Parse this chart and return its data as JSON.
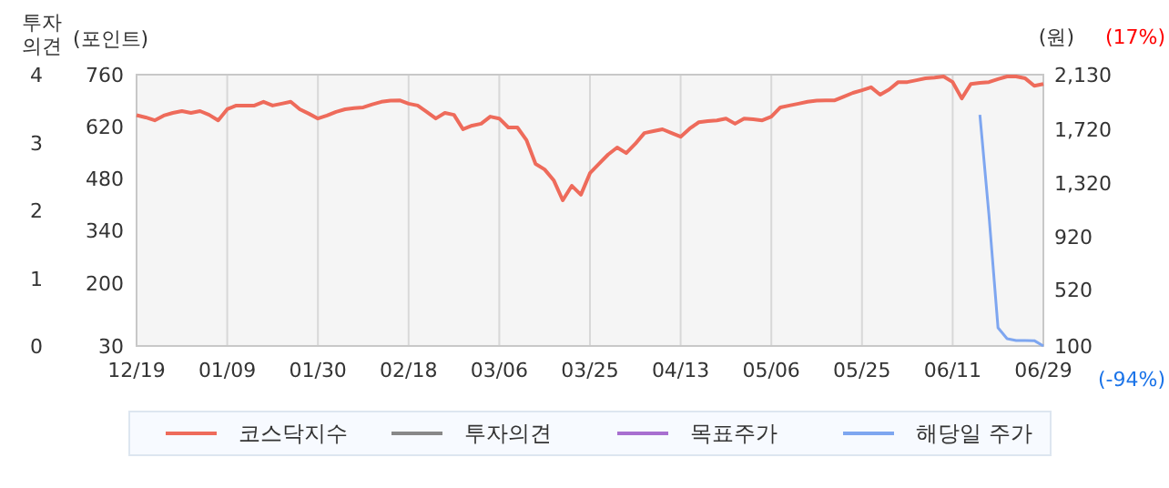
{
  "chart_data": {
    "type": "line",
    "ylabel": "(포인트)",
    "y2label": "(원)",
    "y3label": "투자의견",
    "annotations": [
      "(17%)",
      "(-94%)"
    ],
    "categories": [
      "12/19",
      null,
      null,
      null,
      null,
      null,
      null,
      null,
      null,
      null,
      "01/09",
      null,
      null,
      null,
      null,
      null,
      null,
      null,
      null,
      null,
      "01/30",
      null,
      null,
      null,
      null,
      null,
      null,
      null,
      null,
      null,
      "02/18",
      null,
      null,
      null,
      null,
      null,
      null,
      null,
      null,
      null,
      "03/06",
      null,
      null,
      null,
      null,
      null,
      null,
      null,
      null,
      null,
      "03/25",
      null,
      null,
      null,
      null,
      null,
      null,
      null,
      null,
      null,
      "04/13",
      null,
      null,
      null,
      null,
      null,
      null,
      null,
      null,
      null,
      "05/06",
      null,
      null,
      null,
      null,
      null,
      null,
      null,
      null,
      null,
      "05/25",
      null,
      null,
      null,
      null,
      null,
      null,
      null,
      null,
      null,
      "06/11",
      null,
      null,
      null,
      null,
      null,
      null,
      null,
      null,
      null,
      "06/29"
    ],
    "ylim": [
      30,
      760
    ],
    "yticks": [
      30,
      200,
      340,
      480,
      620,
      760
    ],
    "y2lim": [
      100,
      2130
    ],
    "y2ticks": [
      100,
      520,
      920,
      {
        "value": 1320,
        "label": "1,320"
      },
      {
        "value": 1720,
        "label": "1,720"
      },
      {
        "value": 2130,
        "label": "2,130"
      }
    ],
    "y3lim": [
      0,
      4
    ],
    "y3ticks": [
      0,
      1,
      2,
      3,
      4
    ],
    "grid": "x",
    "legend": "bottom",
    "series": [
      {
        "name": "코스닥지수",
        "color": "#ee6b5b",
        "values": [
          651,
          645,
          637,
          650,
          657,
          662,
          657,
          662,
          652,
          637,
          667,
          677,
          677,
          677,
          687,
          677,
          682,
          687,
          667,
          655,
          642,
          650,
          660,
          667,
          670,
          672,
          680,
          687,
          690,
          691,
          682,
          677,
          660,
          642,
          657,
          652,
          613,
          623,
          628,
          647,
          642,
          618,
          618,
          584,
          520,
          505,
          476,
          422,
          461,
          437,
          495,
          520,
          545,
          564,
          549,
          574,
          603,
          608,
          613,
          603,
          593,
          615,
          632,
          635,
          637,
          642,
          628,
          642,
          640,
          637,
          647,
          672,
          677,
          682,
          687,
          690,
          691,
          691,
          701,
          711,
          718,
          726,
          706,
          720,
          740,
          740,
          745,
          750,
          752,
          755,
          740,
          696,
          735,
          738,
          740,
          748,
          755,
          755,
          750,
          730,
          735
        ]
      },
      {
        "name": "투자의견",
        "color": "#888888",
        "axis": "y3",
        "values": [
          null,
          null,
          null,
          null,
          null,
          null,
          null,
          null,
          null,
          null,
          null,
          null,
          null,
          null,
          null,
          null,
          null,
          null,
          null,
          null,
          null,
          null,
          null,
          null,
          null,
          null,
          null,
          null,
          null,
          null,
          null,
          null,
          null,
          null,
          null,
          null,
          null,
          null,
          null,
          null,
          null,
          null,
          null,
          null,
          null,
          null,
          null,
          null,
          null,
          null,
          null,
          null,
          null,
          null,
          null,
          null,
          null,
          null,
          null,
          null,
          null,
          null,
          null,
          null,
          null,
          null,
          null,
          null,
          null,
          null,
          null,
          null,
          null,
          null,
          null,
          null,
          null,
          null,
          null,
          null,
          null,
          null,
          null,
          null,
          null,
          null,
          null,
          null,
          null,
          null,
          null,
          null,
          null,
          null,
          null,
          null,
          null,
          null,
          null,
          null,
          null
        ]
      },
      {
        "name": "목표주가",
        "color": "#a86fd0",
        "axis": "y2",
        "values": [
          null,
          null,
          null,
          null,
          null,
          null,
          null,
          null,
          null,
          null,
          null,
          null,
          null,
          null,
          null,
          null,
          null,
          null,
          null,
          null,
          null,
          null,
          null,
          null,
          null,
          null,
          null,
          null,
          null,
          null,
          null,
          null,
          null,
          null,
          null,
          null,
          null,
          null,
          null,
          null,
          null,
          null,
          null,
          null,
          null,
          null,
          null,
          null,
          null,
          null,
          null,
          null,
          null,
          null,
          null,
          null,
          null,
          null,
          null,
          null,
          null,
          null,
          null,
          null,
          null,
          null,
          null,
          null,
          null,
          null,
          null,
          null,
          null,
          null,
          null,
          null,
          null,
          null,
          null,
          null,
          null,
          null,
          null,
          null,
          null,
          null,
          null,
          null,
          null,
          null,
          null,
          null,
          null,
          null,
          null,
          null,
          null,
          null,
          null,
          null,
          null
        ]
      },
      {
        "name": "해당일 주가",
        "color": "#7ea6f0",
        "axis": "y2",
        "values": [
          null,
          null,
          null,
          null,
          null,
          null,
          null,
          null,
          null,
          null,
          null,
          null,
          null,
          null,
          null,
          null,
          null,
          null,
          null,
          null,
          null,
          null,
          null,
          null,
          null,
          null,
          null,
          null,
          null,
          null,
          null,
          null,
          null,
          null,
          null,
          null,
          null,
          null,
          null,
          null,
          null,
          null,
          null,
          null,
          null,
          null,
          null,
          null,
          null,
          null,
          null,
          null,
          null,
          null,
          null,
          null,
          null,
          null,
          null,
          null,
          null,
          null,
          null,
          null,
          null,
          null,
          null,
          null,
          null,
          null,
          null,
          null,
          null,
          null,
          null,
          null,
          null,
          null,
          null,
          null,
          null,
          null,
          null,
          null,
          null,
          null,
          null,
          null,
          null,
          null,
          null,
          null,
          null,
          1830,
          1080,
          236,
          154,
          141,
          141,
          140,
          100
        ]
      }
    ]
  }
}
